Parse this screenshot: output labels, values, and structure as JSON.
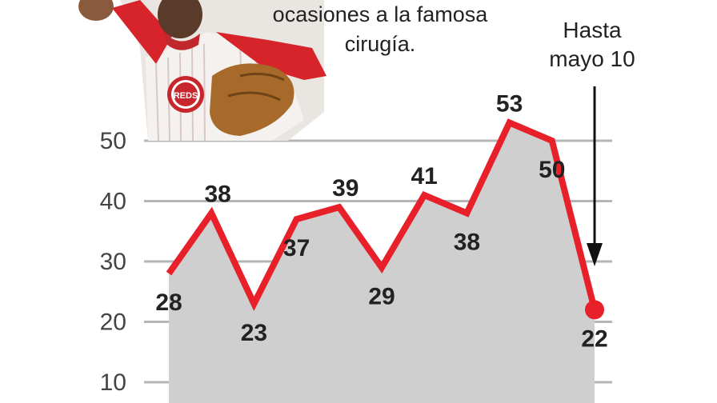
{
  "caption": {
    "line1": "ocasiones a la famosa",
    "line2": "cirugía."
  },
  "annotation": {
    "line1": "Hasta",
    "line2": "mayo 10"
  },
  "photo": {
    "cap_logo_text": "REDS"
  },
  "chart_data": {
    "type": "area",
    "title": "",
    "xlabel": "",
    "ylabel": "",
    "ylim": [
      10,
      55
    ],
    "yticks": [
      50,
      40,
      30,
      20,
      10
    ],
    "grid": true,
    "values": [
      28,
      38,
      23,
      37,
      39,
      29,
      41,
      38,
      53,
      50,
      22
    ],
    "labels": [
      "28",
      "38",
      "23",
      "37",
      "39",
      "29",
      "41",
      "38",
      "53",
      "50",
      "22"
    ],
    "colors": {
      "line": "#e8202a",
      "area": "#cfcfd0",
      "grid": "#b5b5b5",
      "label": "#222222",
      "axis_text": "#444444"
    }
  }
}
